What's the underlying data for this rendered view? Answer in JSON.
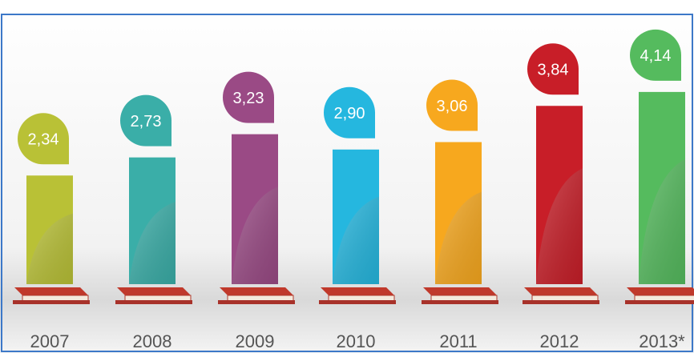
{
  "chart_data": {
    "type": "bar",
    "categories": [
      "2007",
      "2008",
      "2009",
      "2010",
      "2011",
      "2012",
      "2013*"
    ],
    "values": [
      2.34,
      2.73,
      3.23,
      2.9,
      3.06,
      3.84,
      4.14
    ],
    "value_labels": [
      "2,34",
      "2,73",
      "3,23",
      "2,90",
      "3,06",
      "3,84",
      "4,14"
    ],
    "colors": [
      "#b9c136",
      "#3aaea8",
      "#9a4a85",
      "#25b7df",
      "#f7a81e",
      "#c81e28",
      "#55bb5e"
    ]
  }
}
